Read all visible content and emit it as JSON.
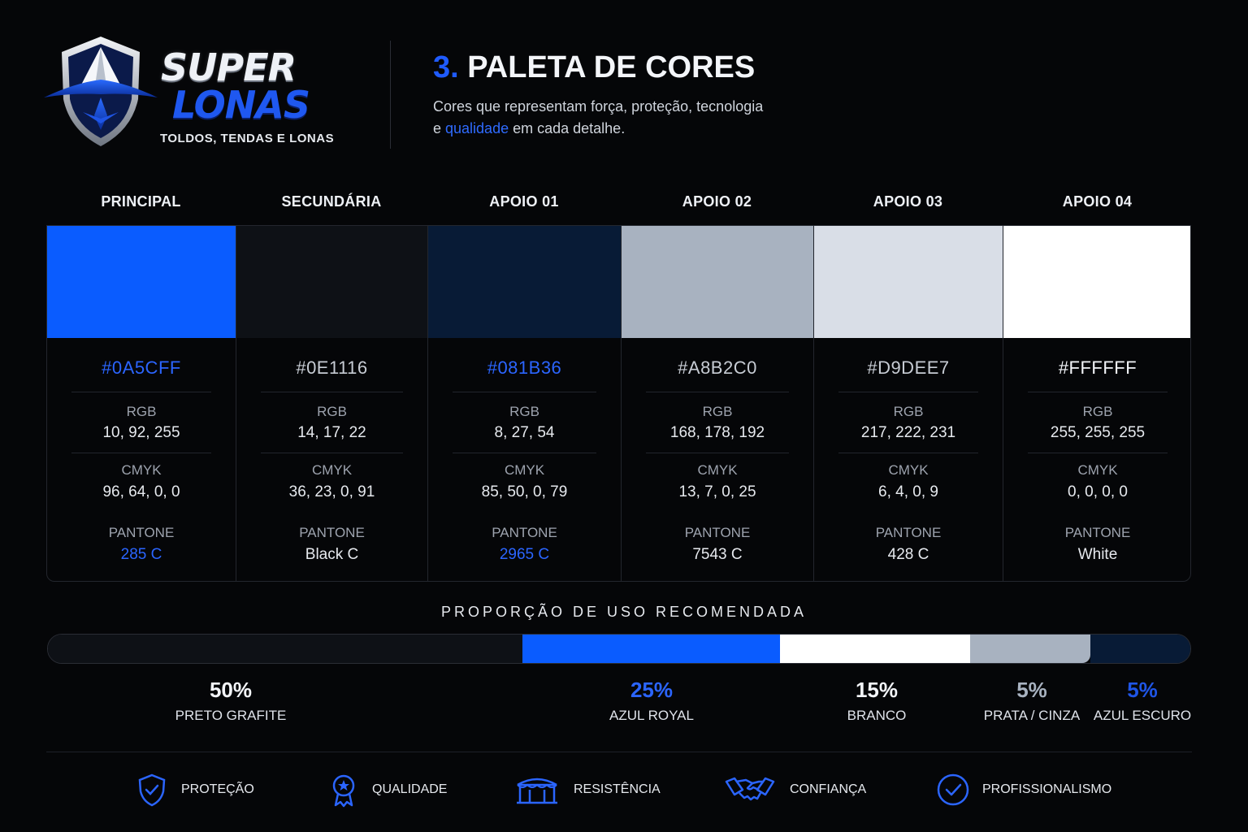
{
  "brand": {
    "name_top": "SUPER",
    "name_bottom": "LONAS",
    "tagline": "TOLDOS, TENDAS E LONAS"
  },
  "header": {
    "title_number": "3.",
    "title": "PALETA DE CORES",
    "subtitle_line1": "Cores que representam força, proteção, tecnologia",
    "subtitle_pre": "e ",
    "subtitle_highlight": "qualidade",
    "subtitle_post": " em cada detalhe."
  },
  "labels": {
    "rgb": "RGB",
    "cmyk": "CMYK",
    "pantone": "PANTONE"
  },
  "palette": [
    {
      "name": "PRINCIPAL",
      "color": "#0A5CFF",
      "hex": "#0A5CFF",
      "rgb": "10, 92, 255",
      "cmyk": "96, 64, 0, 0",
      "pantone": "285 C",
      "accent": true
    },
    {
      "name": "SECUNDÁRIA",
      "color": "#0E1116",
      "hex": "#0E1116",
      "rgb": "14, 17, 22",
      "cmyk": "36, 23, 0, 91",
      "pantone": "Black C",
      "accent": false
    },
    {
      "name": "APOIO 01",
      "color": "#081B36",
      "hex": "#081B36",
      "rgb": "8, 27, 54",
      "cmyk": "85, 50, 0, 79",
      "pantone": "2965 C",
      "accent": true
    },
    {
      "name": "APOIO 02",
      "color": "#A8B2C0",
      "hex": "#A8B2C0",
      "rgb": "168, 178, 192",
      "cmyk": "13, 7, 0, 25",
      "pantone": "7543 C",
      "accent": false
    },
    {
      "name": "APOIO 03",
      "color": "#D9DEE7",
      "hex": "#D9DEE7",
      "rgb": "217, 222, 231",
      "cmyk": "6, 4, 0, 9",
      "pantone": "428 C",
      "accent": false
    },
    {
      "name": "APOIO 04",
      "color": "#FFFFFF",
      "hex": "#FFFFFF",
      "rgb": "255, 255, 255",
      "cmyk": "0, 0, 0, 0",
      "pantone": "White",
      "accent": false
    }
  ],
  "proportion": {
    "title": "PROPORÇÃO DE USO RECOMENDADA",
    "segments": [
      {
        "percent": "50%",
        "value": 50,
        "label": "PRETO GRAFITE",
        "color": "#0E1116",
        "text_color": "#F3F5F9"
      },
      {
        "percent": "25%",
        "value": 25,
        "label": "AZUL ROYAL",
        "color": "#0A5CFF",
        "text_color": "#2B65FF"
      },
      {
        "percent": "15%",
        "value": 15,
        "label": "BRANCO",
        "color": "#FFFFFF",
        "text_color": "#F3F5F9"
      },
      {
        "percent": "5%",
        "value": 5,
        "label": "PRATA / CINZA",
        "color": "#A8B2C0",
        "text_color": "#A8B2C0"
      },
      {
        "percent": "5%",
        "value": 5,
        "label": "AZUL ESCURO",
        "color": "#081B36",
        "text_color": "#1F55E6"
      }
    ]
  },
  "values": [
    {
      "label": "PROTEÇÃO",
      "icon": "shield-check-icon"
    },
    {
      "label": "QUALIDADE",
      "icon": "award-badge-icon"
    },
    {
      "label": "RESISTÊNCIA",
      "icon": "tent-icon"
    },
    {
      "label": "CONFIANÇA",
      "icon": "handshake-icon"
    },
    {
      "label": "PROFISSIONALISMO",
      "icon": "check-circle-icon"
    }
  ]
}
